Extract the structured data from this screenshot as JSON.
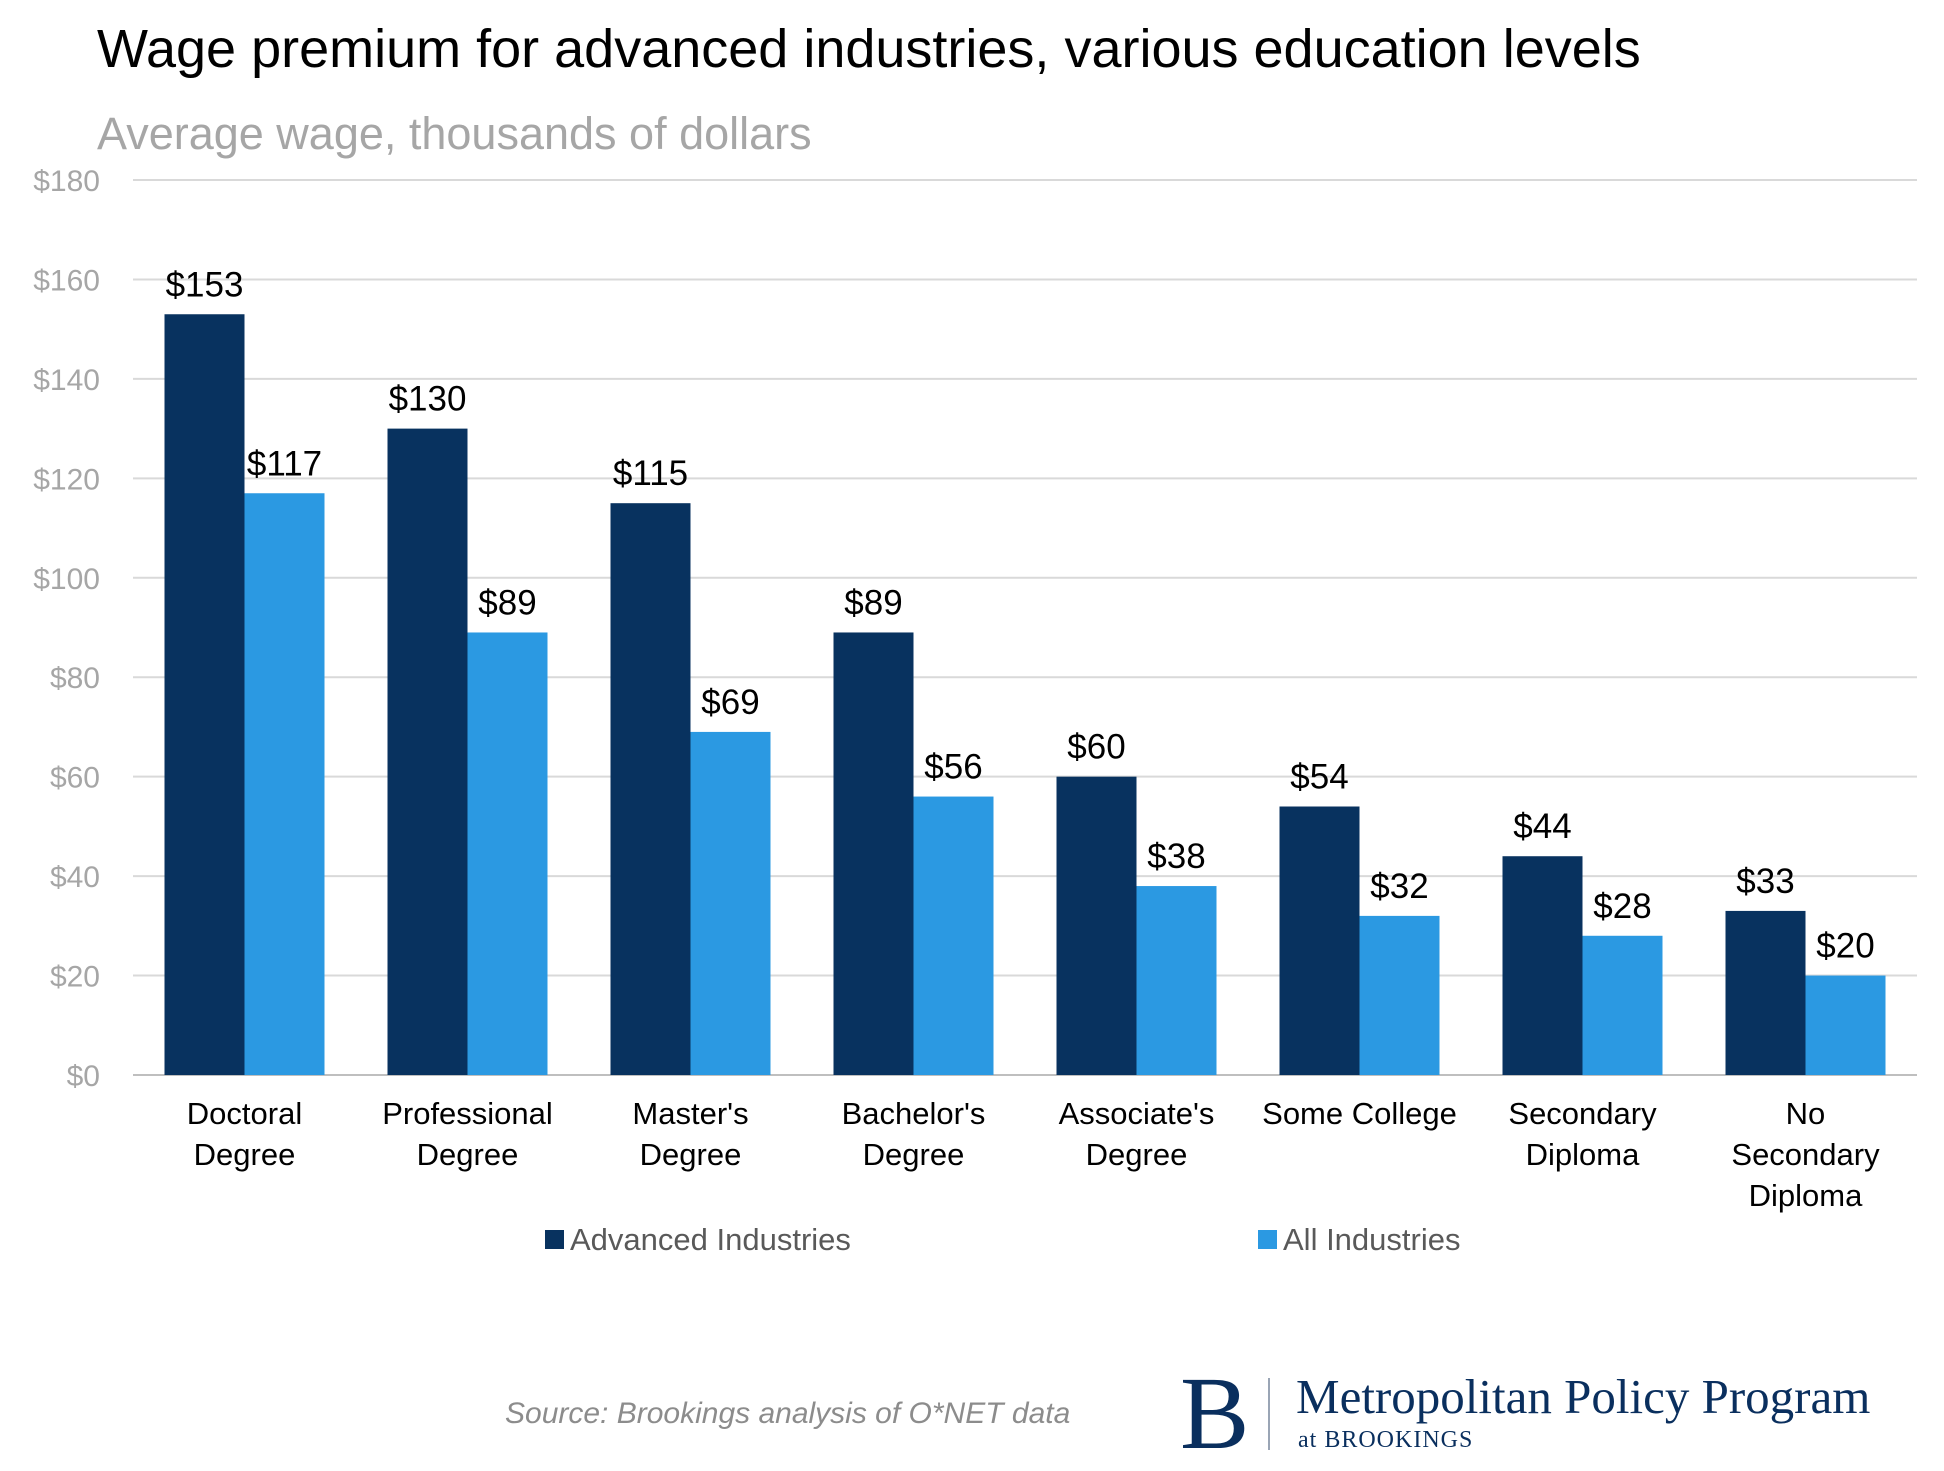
{
  "chart_data": {
    "type": "bar",
    "title": "Wage premium for advanced industries, various education levels",
    "subtitle": "Average wage, thousands of dollars",
    "categories": [
      [
        "Doctoral",
        "Degree"
      ],
      [
        "Professional",
        "Degree"
      ],
      [
        "Master's",
        "Degree"
      ],
      [
        "Bachelor's",
        "Degree"
      ],
      [
        "Associate's",
        "Degree"
      ],
      [
        "Some College"
      ],
      [
        "Secondary",
        "Diploma"
      ],
      [
        "No",
        "Secondary",
        "Diploma"
      ]
    ],
    "series": [
      {
        "name": "Advanced Industries",
        "color": "#08325f",
        "values": [
          153,
          130,
          115,
          89,
          60,
          54,
          44,
          33
        ],
        "labels": [
          "$153",
          "$130",
          "$115",
          "$89",
          "$60",
          "$54",
          "$44",
          "$33"
        ]
      },
      {
        "name": "All Industries",
        "color": "#2b99e2",
        "values": [
          117,
          89,
          69,
          56,
          38,
          32,
          28,
          20
        ],
        "labels": [
          "$117",
          "$89",
          "$69",
          "$56",
          "$38",
          "$32",
          "$28",
          "$20"
        ]
      }
    ],
    "ylim": [
      0,
      180
    ],
    "yticks": [
      0,
      20,
      40,
      60,
      80,
      100,
      120,
      140,
      160,
      180
    ],
    "ytick_labels": [
      "$0",
      "$20",
      "$40",
      "$60",
      "$80",
      "$100",
      "$120",
      "$140",
      "$160",
      "$180"
    ],
    "grid": true,
    "legend": "bottom"
  },
  "footer": {
    "source": "Source: Brookings analysis of O*NET data",
    "logo_letter": "B",
    "logo_name": "Metropolitan Policy Program",
    "logo_sub": "at BROOKINGS"
  }
}
